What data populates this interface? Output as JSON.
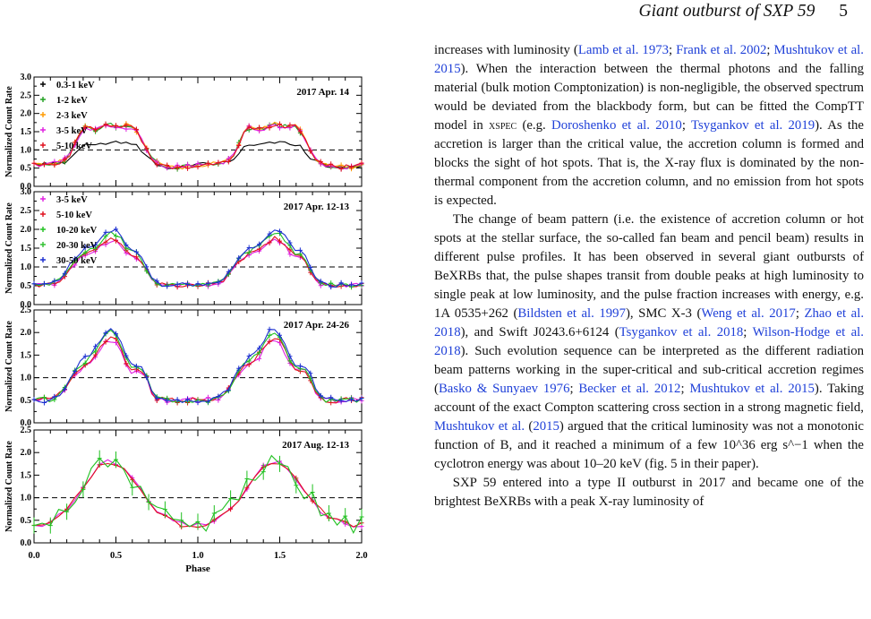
{
  "header": {
    "title": "Giant outburst of SXP 59",
    "page_number": "5"
  },
  "figure": {
    "ylabel": "Normalized Count Rate",
    "xlabel": "Phase",
    "x_ticks": [
      "0.0",
      "0.5",
      "1.0",
      "1.5",
      "2.0"
    ],
    "panels": [
      {
        "title": "2017 Apr. 14",
        "y_ticks": [
          "0.0",
          "0.5",
          "1.0",
          "1.5",
          "2.0",
          "2.5",
          "3.0"
        ],
        "legend": [
          {
            "label": "0.3-1 keV",
            "color": "#000000"
          },
          {
            "label": "1-2 keV",
            "color": "#20a020"
          },
          {
            "label": "2-3 keV",
            "color": "#ff9a00"
          },
          {
            "label": "3-5 keV",
            "color": "#e020e0"
          },
          {
            "label": "5-10 keV",
            "color": "#e0101e"
          }
        ]
      },
      {
        "title": "2017 Apr. 12-13",
        "y_ticks": [
          "0.0",
          "0.5",
          "1.0",
          "1.5",
          "2.0",
          "2.5",
          "3.0"
        ],
        "legend": [
          {
            "label": "3-5 keV",
            "color": "#e020e0"
          },
          {
            "label": "5-10 keV",
            "color": "#e0101e"
          },
          {
            "label": "10-20 keV",
            "color": "#20c020"
          },
          {
            "label": "20-30 keV",
            "color": "#30c030"
          },
          {
            "label": "30-50 keV",
            "color": "#1c2fd0"
          }
        ]
      },
      {
        "title": "2017 Apr. 24-26",
        "y_ticks": [
          "0.0",
          "0.5",
          "1.0",
          "1.5",
          "2.0",
          "2.5"
        ],
        "legend": []
      },
      {
        "title": "2017 Aug. 12-13",
        "y_ticks": [
          "0.0",
          "0.5",
          "1.0",
          "1.5",
          "2.0",
          "2.5"
        ],
        "legend": []
      }
    ]
  },
  "text": {
    "p1": [
      {
        "t": "increases with luminosity ("
      },
      {
        "t": "Lamb et al. 1973",
        "c": 1
      },
      {
        "t": "; "
      },
      {
        "t": "Frank et al. 2002",
        "c": 1
      },
      {
        "t": "; "
      },
      {
        "t": "Mushtukov et al. 2015",
        "c": 1
      },
      {
        "t": "). When the interaction between the thermal photons and the falling material (bulk motion Comptonization) is non-negligible, the observed spectrum would be deviated from the blackbody form, but can be fitted the CompTT model in "
      },
      {
        "t": "xspec",
        "sc": 1
      },
      {
        "t": " (e.g. "
      },
      {
        "t": "Doroshenko et al. 2010",
        "c": 1
      },
      {
        "t": "; "
      },
      {
        "t": "Tsygankov et al. 2019",
        "c": 1
      },
      {
        "t": "). As the accretion is larger than the critical value, the accretion column is formed and blocks the sight of hot spots. That is, the X-ray flux is dominated by the non-thermal component from the accretion column, and no emission from hot spots is expected."
      }
    ],
    "p2": [
      {
        "t": "The change of beam pattern (i.e. the existence of accretion column or hot spots at the stellar surface, the so-called fan beam and pencil beam) results in different pulse profiles. It has been observed in several giant outbursts of BeXRBs that, the pulse shapes transit from double peaks at high luminosity to single peak at low luminosity, and the pulse fraction increases with energy, e.g. 1A 0535+262 ("
      },
      {
        "t": "Bildsten et al. 1997",
        "c": 1
      },
      {
        "t": "), SMC X-3 ("
      },
      {
        "t": "Weng et al. 2017",
        "c": 1
      },
      {
        "t": "; "
      },
      {
        "t": "Zhao et al. 2018",
        "c": 1
      },
      {
        "t": "), and Swift J0243.6+6124 ("
      },
      {
        "t": "Tsygankov et al. 2018",
        "c": 1
      },
      {
        "t": "; "
      },
      {
        "t": "Wilson-Hodge et al. 2018",
        "c": 1
      },
      {
        "t": "). Such evolution sequence can be interpreted as the different radiation beam patterns working in the super-critical and sub-critical accretion regimes ("
      },
      {
        "t": "Basko & Sunyaev 1976",
        "c": 1
      },
      {
        "t": "; "
      },
      {
        "t": "Becker et al. 2012",
        "c": 1
      },
      {
        "t": "; "
      },
      {
        "t": "Mushtukov et al. 2015",
        "c": 1
      },
      {
        "t": "). Taking account of the exact Compton scattering cross section in a strong magnetic field, "
      },
      {
        "t": "Mushtukov et al.",
        "c": 1
      },
      {
        "t": " ("
      },
      {
        "t": "2015",
        "c": 1
      },
      {
        "t": ") argued that the critical luminosity was not a monotonic function of B, and it reached a minimum of a few 10^36 erg s^−1 when the cyclotron energy was about 10–20 keV (fig. 5 in their paper)."
      }
    ],
    "p3": [
      {
        "t": "SXP 59 entered into a type II outburst in 2017 and became one of the brightest BeXRBs with a peak X-ray luminosity of"
      }
    ]
  }
}
